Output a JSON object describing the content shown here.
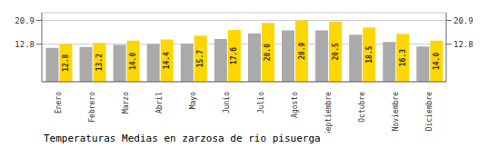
{
  "chart_data": {
    "type": "bar",
    "title": "Temperaturas Medias en zarzosa de rio pisuerga",
    "categories": [
      "Enero",
      "Febrero",
      "Marzo",
      "Abril",
      "Mayo",
      "Junio",
      "Julio",
      "Agosto",
      "Septiembre",
      "Octubre",
      "Noviembre",
      "Diciembre"
    ],
    "series": [
      {
        "color": "#AAAAAA",
        "values": [
          11.5,
          11.8,
          12.5,
          12.8,
          13.0,
          14.5,
          16.5,
          17.5,
          17.5,
          16.0,
          13.5,
          12.0
        ]
      },
      {
        "color": "#FFD700",
        "values": [
          12.8,
          13.2,
          14.0,
          14.4,
          15.7,
          17.6,
          20.0,
          20.9,
          20.5,
          18.5,
          16.3,
          14.0
        ],
        "data_labels": true,
        "value_labels": [
          "12.8",
          "13.2",
          "14.0",
          "14.4",
          "15.7",
          "17.6",
          "20.0",
          "20.9",
          "20.5",
          "18.5",
          "16.3",
          "14.0"
        ]
      }
    ],
    "ylim": [
      0,
      23.5
    ],
    "yticks": [
      12.8,
      20.9
    ],
    "y2lim": [
      0,
      23.5
    ],
    "y2ticks": [
      12.8,
      20.9
    ],
    "grid": true
  }
}
